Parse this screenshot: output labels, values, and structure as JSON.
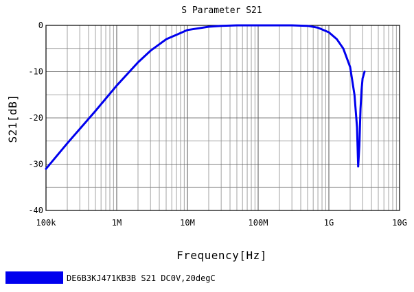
{
  "chart_data": {
    "type": "line",
    "title": "S Parameter S21",
    "xlabel": "Frequency[Hz]",
    "ylabel": "S21[dB]",
    "x_scale": "log",
    "xlim": [
      100000,
      10000000000
    ],
    "ylim": [
      -40,
      0
    ],
    "grid": true,
    "legend_position": "bottom-left",
    "x_ticks": [
      {
        "value": 100000,
        "label": "100k"
      },
      {
        "value": 1000000,
        "label": "1M"
      },
      {
        "value": 10000000,
        "label": "10M"
      },
      {
        "value": 100000000,
        "label": "100M"
      },
      {
        "value": 1000000000,
        "label": "1G"
      },
      {
        "value": 10000000000,
        "label": "10G"
      }
    ],
    "y_ticks": [
      {
        "value": 0,
        "label": "0"
      },
      {
        "value": -10,
        "label": "-10"
      },
      {
        "value": -20,
        "label": "-20"
      },
      {
        "value": -30,
        "label": "-30"
      },
      {
        "value": -40,
        "label": "-40"
      }
    ],
    "series": [
      {
        "name": "DE6B3KJ471KB3B S21 DC0V,20degC",
        "color": "#0000ee",
        "x": [
          100000,
          200000,
          500000,
          1000000,
          2000000,
          3000000,
          5000000,
          10000000,
          20000000,
          30000000,
          50000000,
          100000000,
          200000000,
          300000000,
          500000000,
          700000000,
          1000000000,
          1300000000,
          1600000000,
          2000000000,
          2300000000,
          2500000000,
          2600000000,
          2700000000,
          2800000000,
          2900000000,
          3000000000,
          3200000000
        ],
        "y": [
          -31,
          -25.5,
          -18.5,
          -13,
          -8,
          -5.5,
          -3,
          -1,
          -0.3,
          -0.1,
          0,
          0,
          0,
          0,
          -0.1,
          -0.5,
          -1.5,
          -3,
          -5,
          -9,
          -15,
          -22,
          -30.5,
          -26,
          -18,
          -14,
          -11.5,
          -10
        ]
      }
    ]
  }
}
